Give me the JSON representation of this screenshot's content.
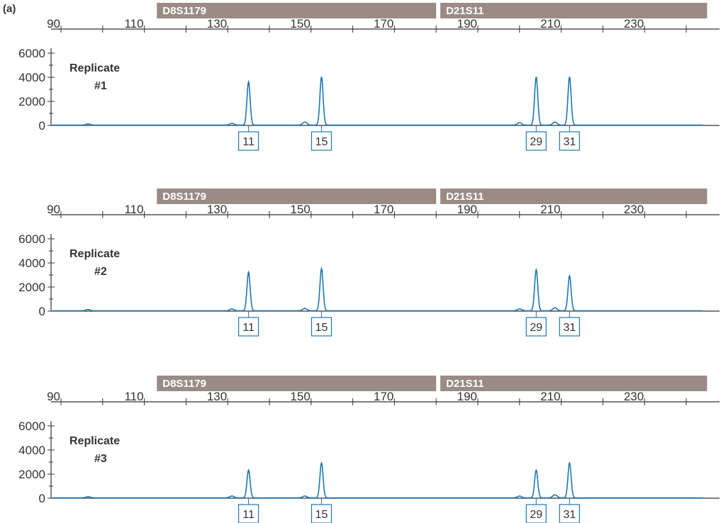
{
  "figure": {
    "panel_label": "(a)"
  },
  "chart_data": [
    {
      "type": "line",
      "title": "Replicate #1",
      "title_lines": [
        "Replicate",
        "#1"
      ],
      "xlim": [
        90,
        240
      ],
      "ylim": [
        0,
        6000
      ],
      "x_ticks": [
        90,
        110,
        130,
        150,
        170,
        190,
        210,
        230
      ],
      "y_ticks": [
        0,
        2000,
        4000,
        6000
      ],
      "loci": [
        {
          "name": "D8S1179",
          "range": [
            113,
            180
          ]
        },
        {
          "name": "D21S11",
          "range": [
            181,
            245
          ]
        }
      ],
      "peaks": [
        {
          "allele": "11",
          "x": 135,
          "height": 3600
        },
        {
          "allele": "15",
          "x": 152.5,
          "height": 4000
        },
        {
          "allele": "29",
          "x": 204,
          "height": 4000
        },
        {
          "allele": "31",
          "x": 212,
          "height": 4000
        }
      ],
      "minor_peaks": [
        {
          "x": 96.5,
          "height": 100
        },
        {
          "x": 131,
          "height": 150
        },
        {
          "x": 148.5,
          "height": 250
        },
        {
          "x": 200,
          "height": 200
        },
        {
          "x": 208.5,
          "height": 250
        }
      ],
      "line_color": "#1f77b4",
      "locus_color": "#9a8c85"
    },
    {
      "type": "line",
      "title": "Replicate #2",
      "title_lines": [
        "Replicate",
        "#2"
      ],
      "xlim": [
        90,
        240
      ],
      "ylim": [
        0,
        6000
      ],
      "x_ticks": [
        90,
        110,
        130,
        150,
        170,
        190,
        210,
        230
      ],
      "y_ticks": [
        0,
        2000,
        4000,
        6000
      ],
      "loci": [
        {
          "name": "D8S1179",
          "range": [
            113,
            180
          ]
        },
        {
          "name": "D21S11",
          "range": [
            181,
            245
          ]
        }
      ],
      "peaks": [
        {
          "allele": "11",
          "x": 135,
          "height": 3200
        },
        {
          "allele": "15",
          "x": 152.5,
          "height": 3500
        },
        {
          "allele": "29",
          "x": 204,
          "height": 3400
        },
        {
          "allele": "31",
          "x": 212,
          "height": 2900
        }
      ],
      "minor_peaks": [
        {
          "x": 96.5,
          "height": 100
        },
        {
          "x": 131,
          "height": 150
        },
        {
          "x": 148.5,
          "height": 200
        },
        {
          "x": 200,
          "height": 150
        },
        {
          "x": 208.5,
          "height": 250
        }
      ],
      "line_color": "#1f77b4",
      "locus_color": "#9a8c85"
    },
    {
      "type": "line",
      "title": "Replicate #3",
      "title_lines": [
        "Replicate",
        "#3"
      ],
      "xlim": [
        90,
        240
      ],
      "ylim": [
        0,
        6000
      ],
      "x_ticks": [
        90,
        110,
        130,
        150,
        170,
        190,
        210,
        230
      ],
      "y_ticks": [
        0,
        2000,
        4000,
        6000
      ],
      "loci": [
        {
          "name": "D8S1179",
          "range": [
            113,
            180
          ]
        },
        {
          "name": "D21S11",
          "range": [
            181,
            245
          ]
        }
      ],
      "peaks": [
        {
          "allele": "11",
          "x": 135,
          "height": 2300
        },
        {
          "allele": "15",
          "x": 152.5,
          "height": 2900
        },
        {
          "allele": "29",
          "x": 204,
          "height": 2300
        },
        {
          "allele": "31",
          "x": 212,
          "height": 2900
        }
      ],
      "minor_peaks": [
        {
          "x": 96.5,
          "height": 100
        },
        {
          "x": 131,
          "height": 150
        },
        {
          "x": 148.5,
          "height": 150
        },
        {
          "x": 200,
          "height": 150
        },
        {
          "x": 208.5,
          "height": 250
        }
      ],
      "line_color": "#1f77b4",
      "locus_color": "#9a8c85"
    }
  ]
}
